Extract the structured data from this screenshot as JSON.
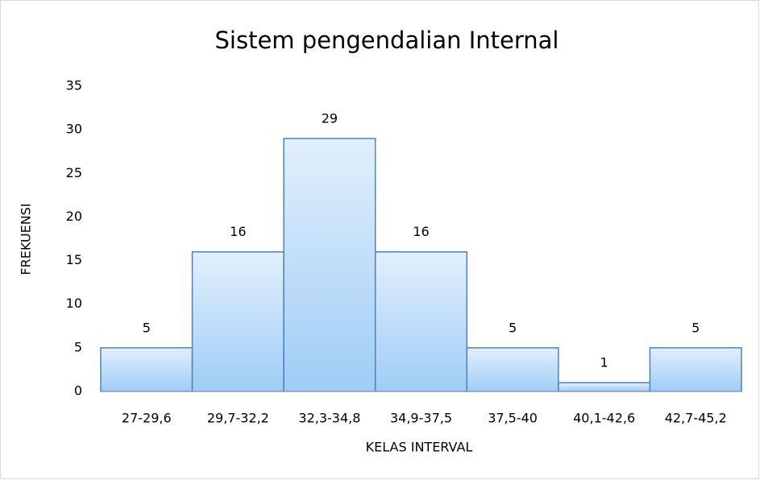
{
  "chart_data": {
    "type": "bar",
    "title": "Sistem pengendalian Internal",
    "x_label": "KELAS INTERVAL",
    "y_label": "FREKUENSI",
    "categories": [
      "27-29,6",
      "29,7-32,2",
      "32,3-34,8",
      "34,9-37,5",
      "37,5-40",
      "40,1-42,6",
      "42,7-45,2"
    ],
    "values": [
      5,
      16,
      29,
      16,
      5,
      1,
      5
    ],
    "color": "#4f81bd",
    "ylim": [
      0,
      35
    ],
    "yticks": [
      0,
      5,
      10,
      15,
      20,
      25,
      30,
      35
    ],
    "grid": false
  }
}
